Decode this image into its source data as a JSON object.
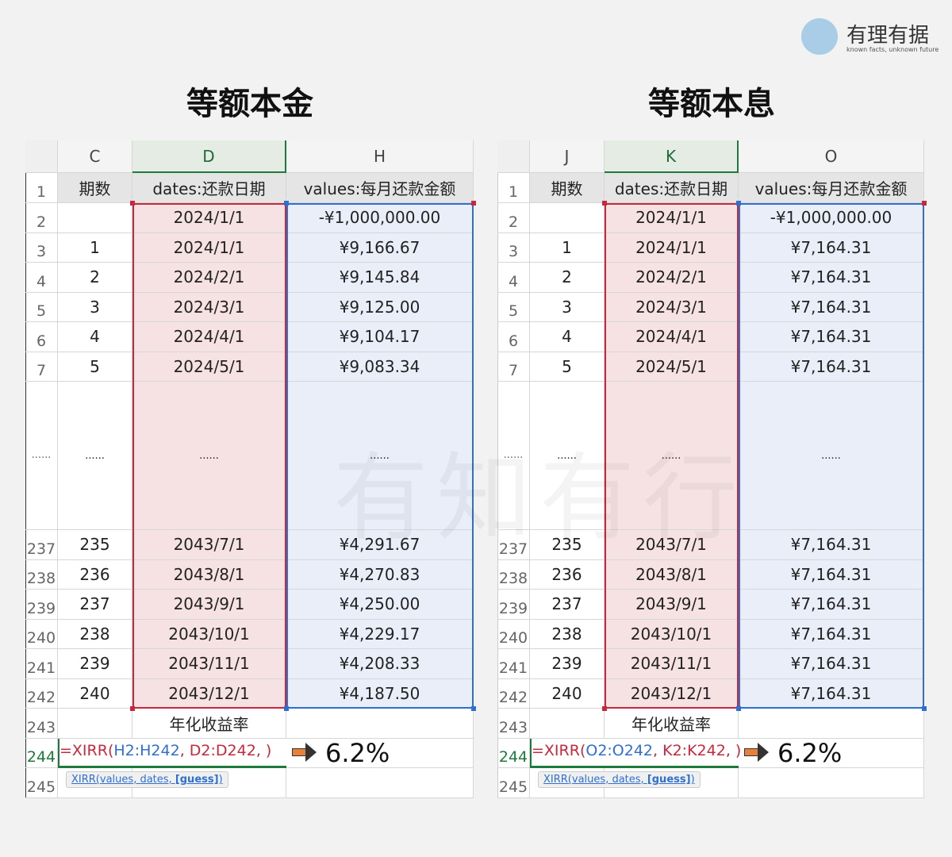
{
  "logo": {
    "name": "有理有据",
    "tagline": "known facts, unknown future"
  },
  "watermark": "有知有行",
  "panels": [
    {
      "title": "等额本金",
      "columns": [
        "C",
        "D",
        "H"
      ],
      "row_numbers": [
        "1",
        "2",
        "3",
        "4",
        "5",
        "6",
        "7",
        "......",
        "237",
        "238",
        "239",
        "240",
        "241",
        "242",
        "243",
        "244",
        "245"
      ],
      "header": [
        "期数",
        "dates:还款日期",
        "values:每月还款金额"
      ],
      "rows": [
        [
          null,
          "2024/1/1",
          "-¥1,000,000.00"
        ],
        [
          "1",
          "2024/1/1",
          "¥9,166.67"
        ],
        [
          "2",
          "2024/2/1",
          "¥9,145.84"
        ],
        [
          "3",
          "2024/3/1",
          "¥9,125.00"
        ],
        [
          "4",
          "2024/4/1",
          "¥9,104.17"
        ],
        [
          "5",
          "2024/5/1",
          "¥9,083.34"
        ],
        [
          "......",
          "......",
          "......"
        ],
        [
          "235",
          "2043/7/1",
          "¥4,291.67"
        ],
        [
          "236",
          "2043/8/1",
          "¥4,270.83"
        ],
        [
          "237",
          "2043/9/1",
          "¥4,250.00"
        ],
        [
          "238",
          "2043/10/1",
          "¥4,229.17"
        ],
        [
          "239",
          "2043/11/1",
          "¥4,208.33"
        ],
        [
          "240",
          "2043/12/1",
          "¥4,187.50"
        ]
      ],
      "summary_label": "年化收益率",
      "formula": [
        "=XIRR(",
        "H2:H242",
        ", ",
        "D2:D242",
        ", )"
      ],
      "result": "6.2%",
      "tooltip": [
        "XIRR(",
        "values",
        ", ",
        "dates",
        ", ",
        "[guess]",
        ")"
      ]
    },
    {
      "title": "等额本息",
      "columns": [
        "J",
        "K",
        "O"
      ],
      "row_numbers": [
        "1",
        "2",
        "3",
        "4",
        "5",
        "6",
        "7",
        "......",
        "237",
        "238",
        "239",
        "240",
        "241",
        "242",
        "243",
        "244",
        "245"
      ],
      "header": [
        "期数",
        "dates:还款日期",
        "values:每月还款金额"
      ],
      "rows": [
        [
          null,
          "2024/1/1",
          "-¥1,000,000.00"
        ],
        [
          "1",
          "2024/1/1",
          "¥7,164.31"
        ],
        [
          "2",
          "2024/2/1",
          "¥7,164.31"
        ],
        [
          "3",
          "2024/3/1",
          "¥7,164.31"
        ],
        [
          "4",
          "2024/4/1",
          "¥7,164.31"
        ],
        [
          "5",
          "2024/5/1",
          "¥7,164.31"
        ],
        [
          "......",
          "......",
          "......"
        ],
        [
          "235",
          "2043/7/1",
          "¥7,164.31"
        ],
        [
          "236",
          "2043/8/1",
          "¥7,164.31"
        ],
        [
          "237",
          "2043/9/1",
          "¥7,164.31"
        ],
        [
          "238",
          "2043/10/1",
          "¥7,164.31"
        ],
        [
          "239",
          "2043/11/1",
          "¥7,164.31"
        ],
        [
          "240",
          "2043/12/1",
          "¥7,164.31"
        ]
      ],
      "summary_label": "年化收益率",
      "formula": [
        "=XIRR(",
        "O2:O242",
        ", ",
        "K2:K242",
        ", )"
      ],
      "result": "6.2%",
      "tooltip": [
        "XIRR(",
        "values",
        ", ",
        "dates",
        ", ",
        "[guess]",
        ")"
      ]
    }
  ]
}
